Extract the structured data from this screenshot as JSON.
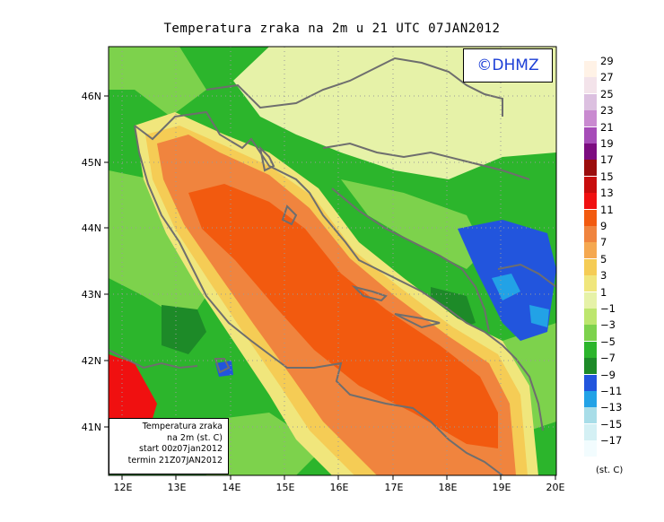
{
  "title": "Temperatura zraka na 2m u 21 UTC 07JAN2012",
  "logo": "©DHMZ",
  "info_box": {
    "line1": "Temperatura zraka",
    "line2": "na 2m (st. C)",
    "line3": "start 00z07jan2012",
    "line4": "termin 21Z07JAN2012"
  },
  "axes": {
    "x_ticks": [
      "12E",
      "13E",
      "14E",
      "15E",
      "16E",
      "17E",
      "18E",
      "19E",
      "20E"
    ],
    "y_ticks": [
      "46N",
      "45N",
      "44N",
      "43N",
      "42N",
      "41N"
    ]
  },
  "legend": {
    "unit": "(st. C)",
    "levels": [
      {
        "label": "29",
        "color": "#fff2e6"
      },
      {
        "label": "27",
        "color": "#f3e3ea"
      },
      {
        "label": "25",
        "color": "#dcc0e0"
      },
      {
        "label": "23",
        "color": "#c98ad0"
      },
      {
        "label": "21",
        "color": "#a64cb8"
      },
      {
        "label": "19",
        "color": "#7c0c80"
      },
      {
        "label": "17",
        "color": "#9b0d0d"
      },
      {
        "label": "15",
        "color": "#c80d0d"
      },
      {
        "label": "13",
        "color": "#f01010"
      },
      {
        "label": "11",
        "color": "#f25a0f"
      },
      {
        "label": "9",
        "color": "#f0843e"
      },
      {
        "label": "7",
        "color": "#f5a850"
      },
      {
        "label": "5",
        "color": "#f5cc55"
      },
      {
        "label": "3",
        "color": "#f0e67c"
      },
      {
        "label": "1",
        "color": "#e6f2a8"
      },
      {
        "label": "−1",
        "color": "#bde66e"
      },
      {
        "label": "−3",
        "color": "#7dd24c"
      },
      {
        "label": "−5",
        "color": "#2cb52c"
      },
      {
        "label": "−7",
        "color": "#1d8a28"
      },
      {
        "label": "−9",
        "color": "#2255dd"
      },
      {
        "label": "−11",
        "color": "#22a2e6"
      },
      {
        "label": "−13",
        "color": "#a8dde8"
      },
      {
        "label": "−15",
        "color": "#d4f0f4"
      },
      {
        "label": "−17",
        "color": "#f2fcfe"
      }
    ]
  }
}
